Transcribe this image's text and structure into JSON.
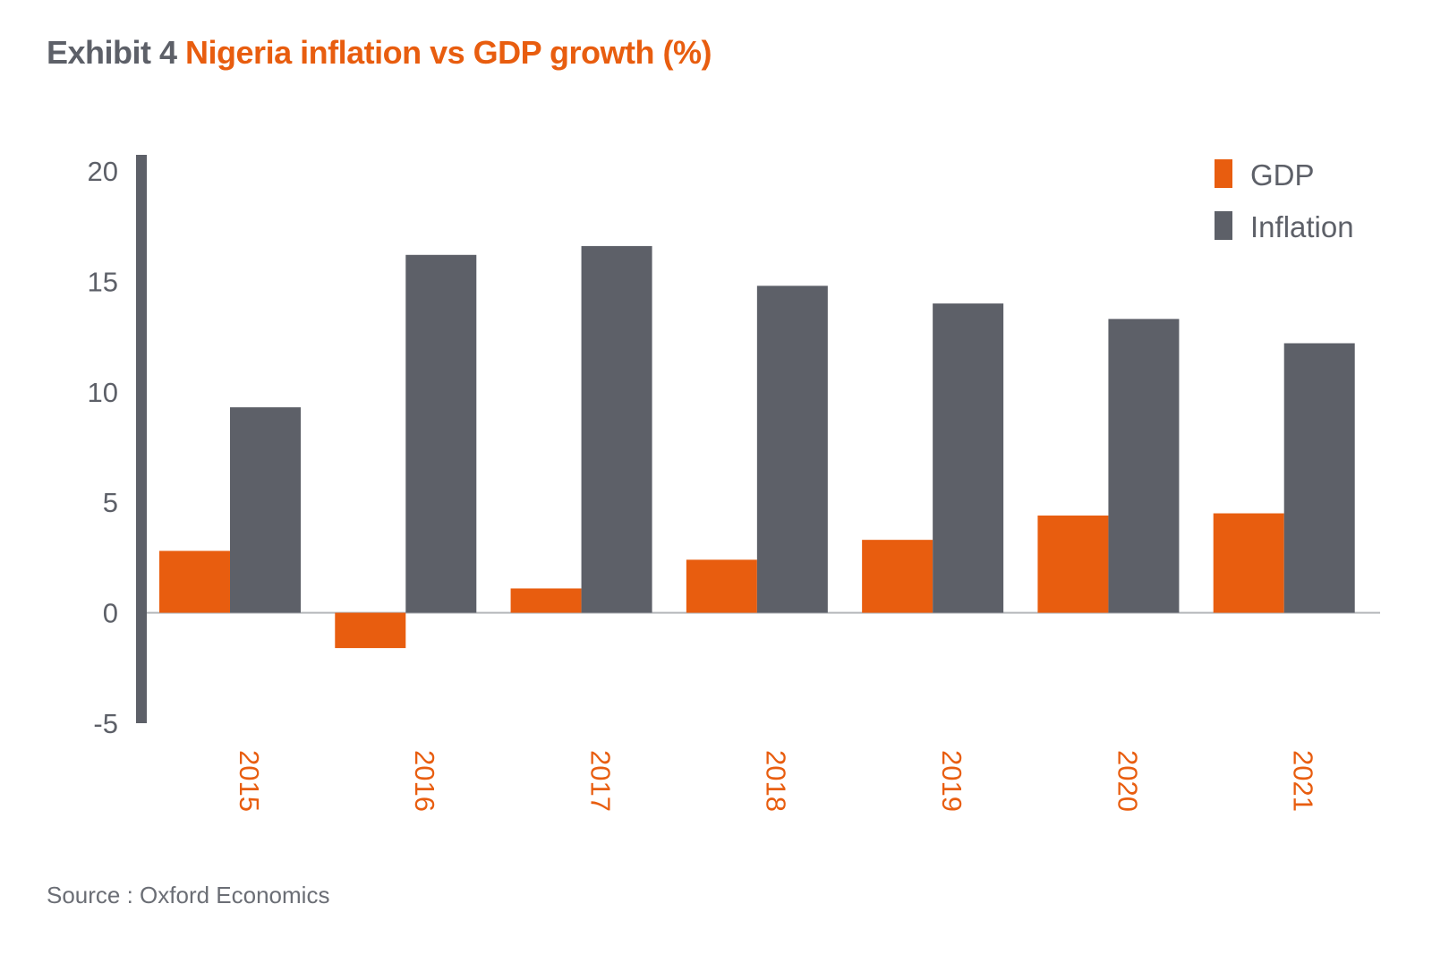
{
  "title": {
    "lead": "Exhibit 4",
    "main": "Nigeria inflation vs GDP growth (%)"
  },
  "source": "Source : Oxford Economics",
  "colors": {
    "gdp": "#e85d0f",
    "inflation": "#5d6068",
    "axis": "#5d6068"
  },
  "chart_data": {
    "type": "bar",
    "categories": [
      "2015",
      "2016",
      "2017",
      "2018",
      "2019",
      "2020",
      "2021"
    ],
    "series": [
      {
        "name": "GDP",
        "values": [
          2.8,
          -1.6,
          1.1,
          2.4,
          3.3,
          4.4,
          4.5
        ]
      },
      {
        "name": "Inflation",
        "values": [
          9.3,
          16.2,
          16.6,
          14.8,
          14.0,
          13.3,
          12.2
        ]
      }
    ],
    "ylim": [
      -5,
      20
    ],
    "yticks": [
      20,
      15,
      10,
      5,
      0,
      -5
    ],
    "legend_position": "top-right",
    "grid": false
  }
}
